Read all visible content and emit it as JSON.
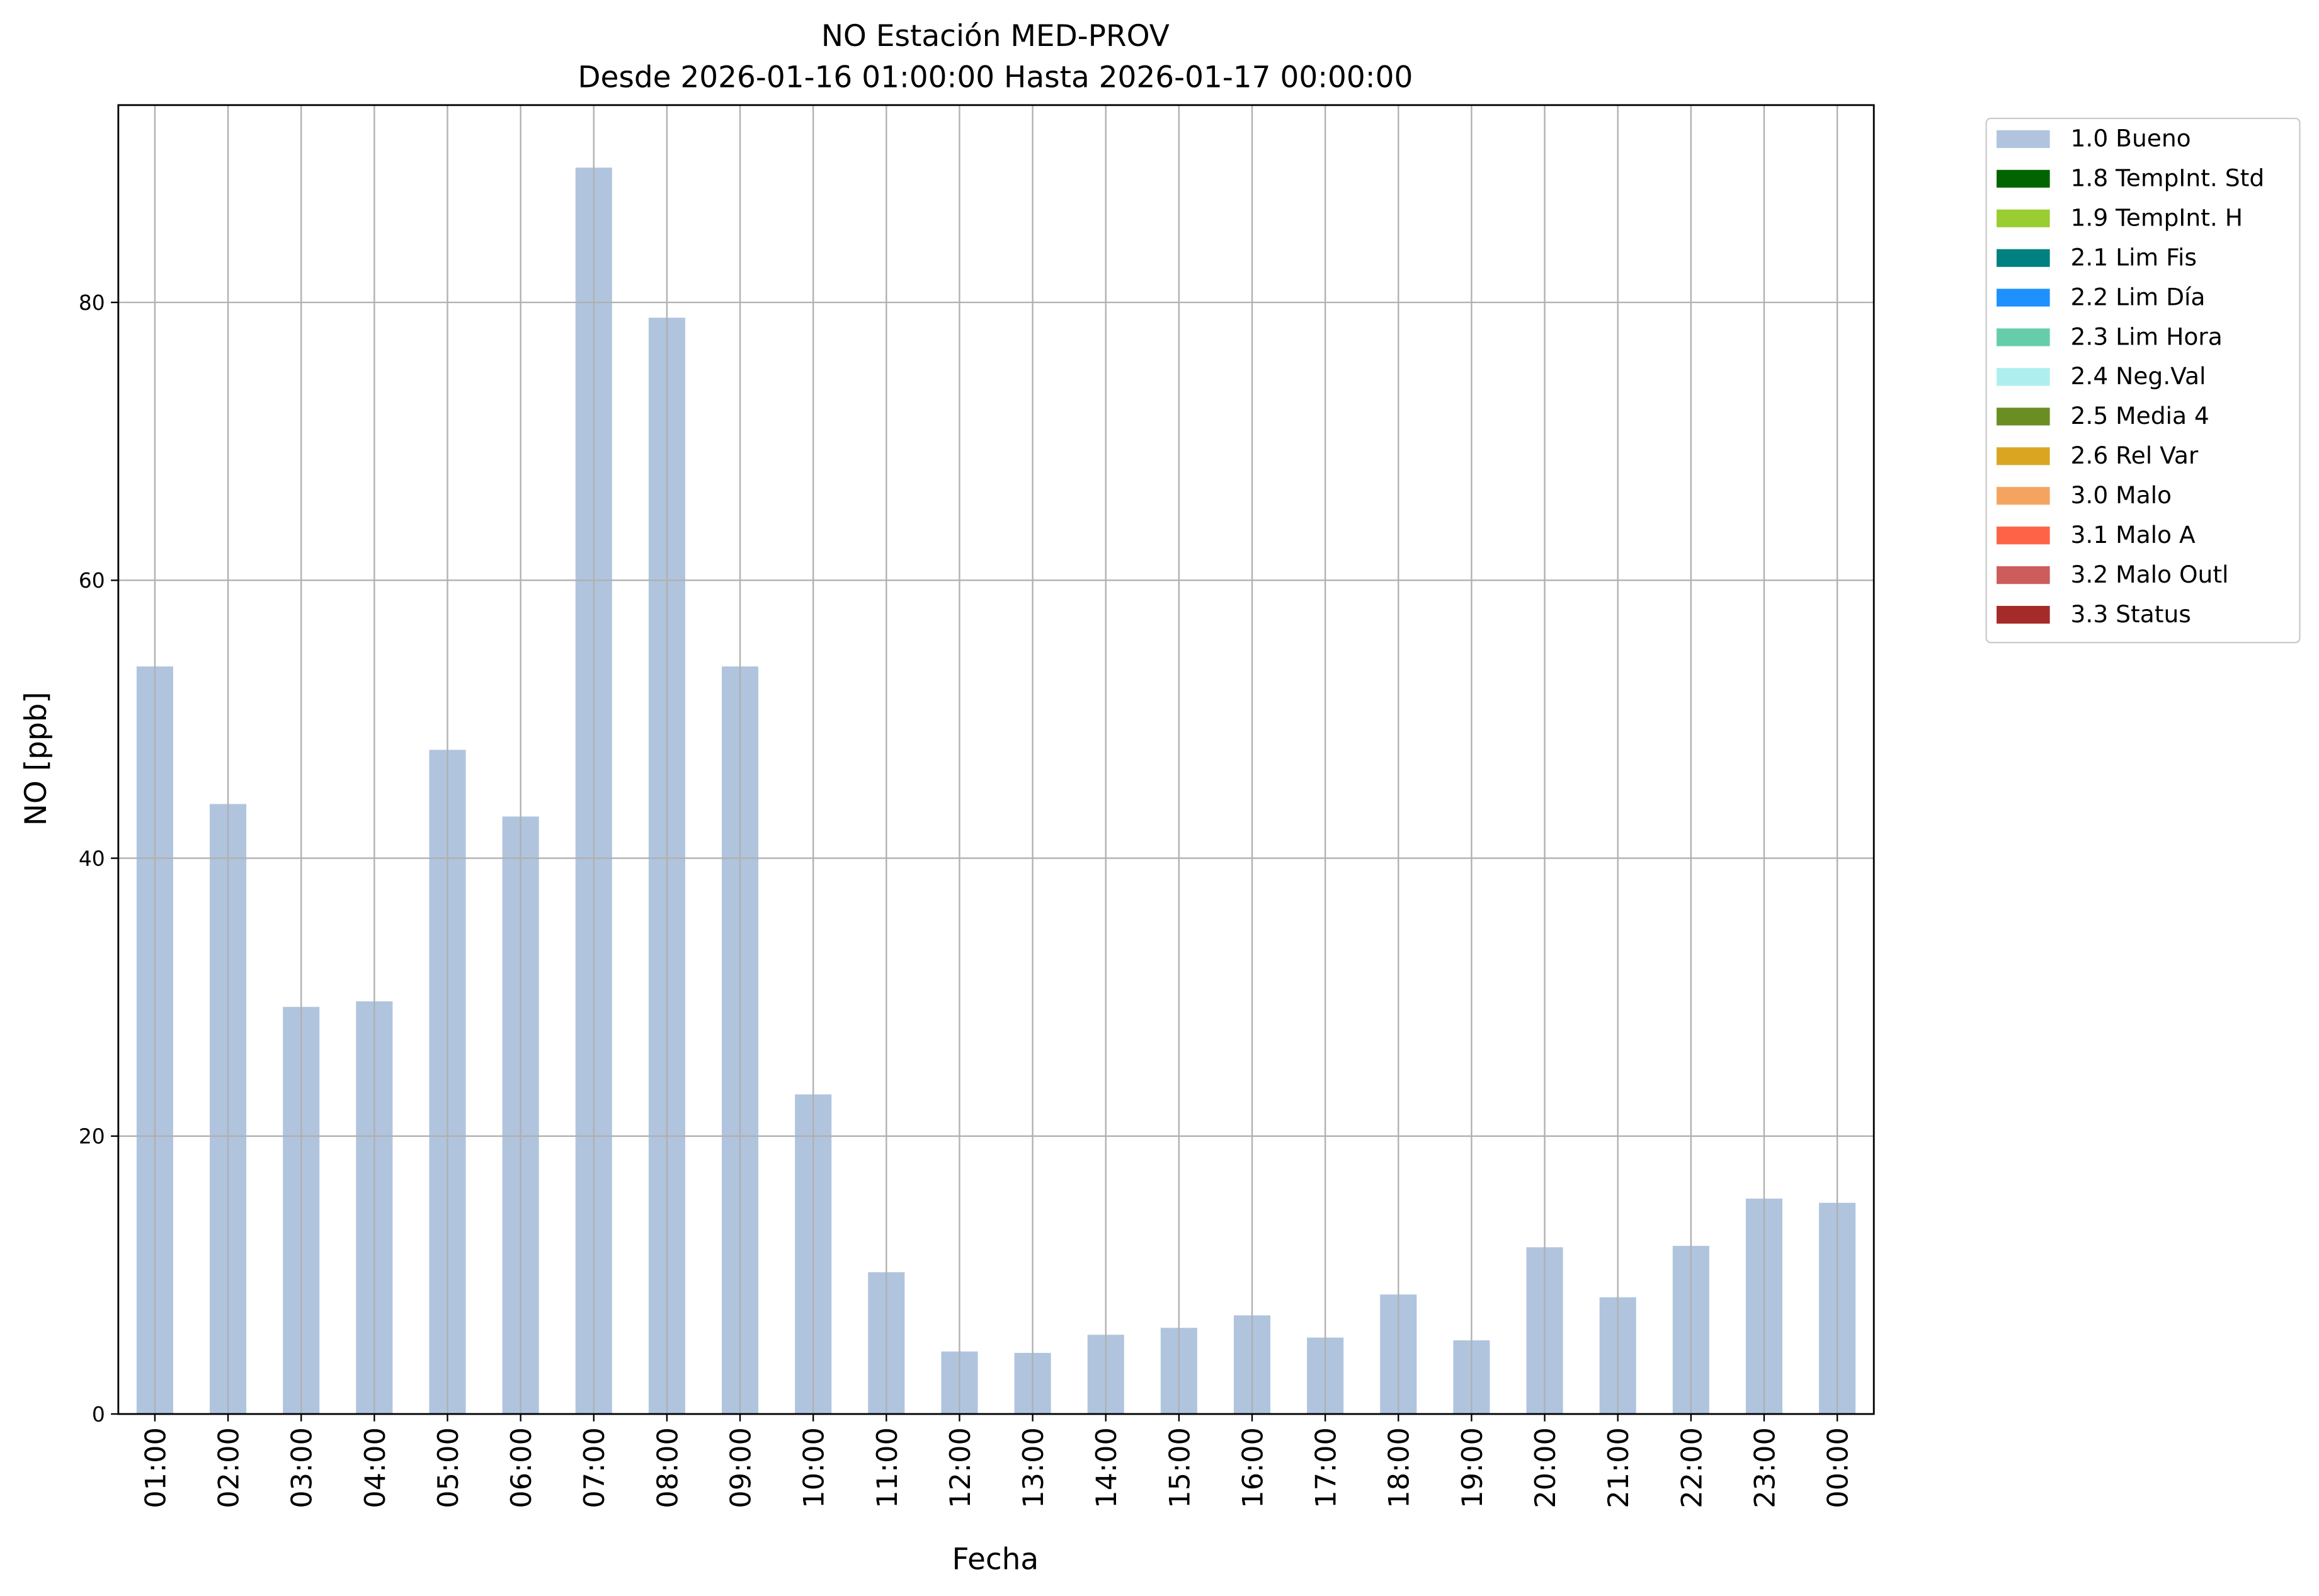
{
  "chart_data": {
    "type": "bar",
    "stacked": true,
    "title": "NO Estación MED-PROV",
    "subtitle": "Desde 2026-01-16 01:00:00 Hasta 2026-01-17 00:00:00",
    "x_label": "Fecha",
    "y_label": "NO [ppb]",
    "categories": [
      "01:00",
      "02:00",
      "03:00",
      "04:00",
      "05:00",
      "06:00",
      "07:00",
      "08:00",
      "09:00",
      "10:00",
      "11:00",
      "12:00",
      "13:00",
      "14:00",
      "15:00",
      "16:00",
      "17:00",
      "18:00",
      "19:00",
      "20:00",
      "21:00",
      "22:00",
      "23:00",
      "00:00"
    ],
    "series": [
      {
        "name": "1.0 Bueno",
        "color": "#b0c4de",
        "values": [
          53.8,
          43.9,
          29.3,
          29.7,
          47.8,
          43.0,
          89.7,
          78.9,
          53.8,
          23.0,
          10.2,
          4.5,
          4.4,
          5.7,
          6.2,
          7.1,
          5.5,
          8.6,
          5.3,
          12.0,
          8.4,
          12.1,
          15.5,
          15.2
        ]
      },
      {
        "name": "1.8 TempInt. Std",
        "color": "#006400",
        "values": [
          0,
          0,
          0,
          0,
          0,
          0,
          0,
          0,
          0,
          0,
          0,
          0,
          0,
          0,
          0,
          0,
          0,
          0,
          0,
          0,
          0,
          0,
          0,
          0
        ]
      },
      {
        "name": "1.9 TempInt. H",
        "color": "#9acd32",
        "values": [
          0,
          0,
          0,
          0,
          0,
          0,
          0,
          0,
          0,
          0,
          0,
          0,
          0,
          0,
          0,
          0,
          0,
          0,
          0,
          0,
          0,
          0,
          0,
          0
        ]
      },
      {
        "name": "2.1 Lim Fis",
        "color": "#008080",
        "values": [
          0,
          0,
          0,
          0,
          0,
          0,
          0,
          0,
          0,
          0,
          0,
          0,
          0,
          0,
          0,
          0,
          0,
          0,
          0,
          0,
          0,
          0,
          0,
          0
        ]
      },
      {
        "name": "2.2 Lim Día",
        "color": "#1e90ff",
        "values": [
          0,
          0,
          0,
          0,
          0,
          0,
          0,
          0,
          0,
          0,
          0,
          0,
          0,
          0,
          0,
          0,
          0,
          0,
          0,
          0,
          0,
          0,
          0,
          0
        ]
      },
      {
        "name": "2.3 Lim Hora",
        "color": "#66cdaa",
        "values": [
          0,
          0,
          0,
          0,
          0,
          0,
          0,
          0,
          0,
          0,
          0,
          0,
          0,
          0,
          0,
          0,
          0,
          0,
          0,
          0,
          0,
          0,
          0,
          0
        ]
      },
      {
        "name": "2.4 Neg.Val",
        "color": "#afeeee",
        "values": [
          0,
          0,
          0,
          0,
          0,
          0,
          0,
          0,
          0,
          0,
          0,
          0,
          0,
          0,
          0,
          0,
          0,
          0,
          0,
          0,
          0,
          0,
          0,
          0
        ]
      },
      {
        "name": "2.5 Media 4",
        "color": "#6b8e23",
        "values": [
          0,
          0,
          0,
          0,
          0,
          0,
          0,
          0,
          0,
          0,
          0,
          0,
          0,
          0,
          0,
          0,
          0,
          0,
          0,
          0,
          0,
          0,
          0,
          0
        ]
      },
      {
        "name": "2.6 Rel Var",
        "color": "#daa520",
        "values": [
          0,
          0,
          0,
          0,
          0,
          0,
          0,
          0,
          0,
          0,
          0,
          0,
          0,
          0,
          0,
          0,
          0,
          0,
          0,
          0,
          0,
          0,
          0,
          0
        ]
      },
      {
        "name": "3.0 Malo",
        "color": "#f4a460",
        "values": [
          0,
          0,
          0,
          0,
          0,
          0,
          0,
          0,
          0,
          0,
          0,
          0,
          0,
          0,
          0,
          0,
          0,
          0,
          0,
          0,
          0,
          0,
          0,
          0
        ]
      },
      {
        "name": "3.1 Malo A",
        "color": "#ff6347",
        "values": [
          0,
          0,
          0,
          0,
          0,
          0,
          0,
          0,
          0,
          0,
          0,
          0,
          0,
          0,
          0,
          0,
          0,
          0,
          0,
          0,
          0,
          0,
          0,
          0
        ]
      },
      {
        "name": "3.2 Malo Outl",
        "color": "#cd5c5c",
        "values": [
          0,
          0,
          0,
          0,
          0,
          0,
          0,
          0,
          0,
          0,
          0,
          0,
          0,
          0,
          0,
          0,
          0,
          0,
          0,
          0,
          0,
          0,
          0,
          0
        ]
      },
      {
        "name": "3.3 Status",
        "color": "#a52a2a",
        "values": [
          0,
          0,
          0,
          0,
          0,
          0,
          0,
          0,
          0,
          0,
          0,
          0,
          0,
          0,
          0,
          0,
          0,
          0,
          0,
          0,
          0,
          0,
          0,
          0
        ]
      }
    ],
    "ylim": [
      0,
      94.2
    ],
    "yticks": [
      0,
      20,
      40,
      60,
      80
    ],
    "grid": true,
    "legend": "outside-upper-right"
  }
}
